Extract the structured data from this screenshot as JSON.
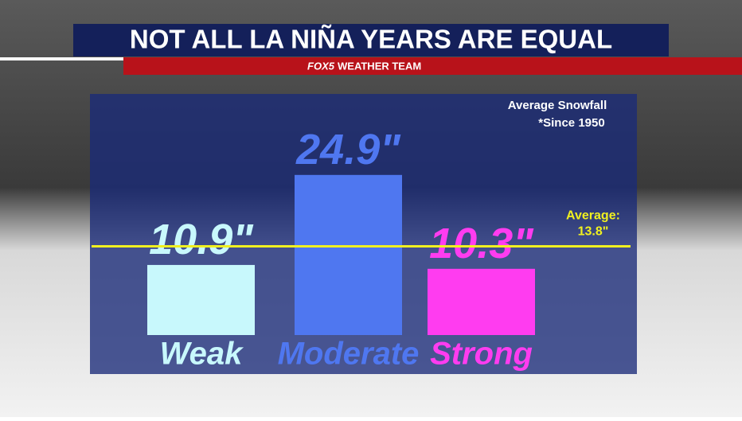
{
  "chart_data": {
    "type": "bar",
    "title": "NOT ALL LA NIÑA YEARS ARE EQUAL",
    "logo": "FOX5",
    "subtitle": "WEATHER TEAM",
    "annotations": [
      "Average Snowfall",
      "*Since 1950"
    ],
    "categories": [
      "Weak",
      "Moderate",
      "Strong"
    ],
    "values": [
      10.9,
      24.9,
      10.3
    ],
    "value_labels": [
      "10.9\"",
      "24.9\"",
      "10.3\""
    ],
    "colors": [
      "#c8f8fc",
      "#4f77f0",
      "#ff3cf0"
    ],
    "average": {
      "label": "Average:",
      "value": 13.8,
      "value_label": "13.8\"",
      "color": "#f0f020"
    },
    "ylim": [
      0,
      25
    ]
  }
}
